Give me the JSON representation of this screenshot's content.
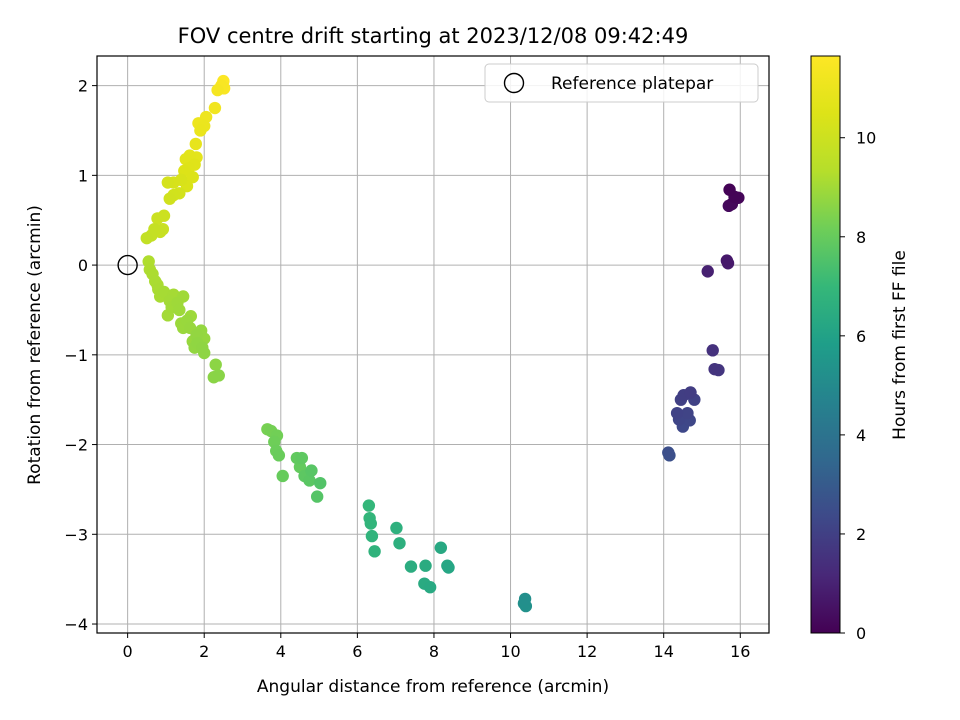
{
  "chart_data": {
    "type": "scatter",
    "title": "FOV centre drift starting at 2023/12/08 09:42:49",
    "xlabel": "Angular distance from reference (arcmin)",
    "ylabel": "Rotation from reference (arcmin)",
    "xlim": [
      -0.8,
      16.75
    ],
    "ylim": [
      -4.1,
      2.33
    ],
    "xticks": [
      0,
      2,
      4,
      6,
      8,
      10,
      12,
      14,
      16
    ],
    "yticks": [
      -4,
      -3,
      -2,
      -1,
      0,
      1,
      2
    ],
    "grid": true,
    "legend": {
      "position": "top-right",
      "entries": [
        "Reference platepar"
      ]
    },
    "reference_point": {
      "x": 0,
      "y": 0
    },
    "colorbar": {
      "label": "Hours from first FF file",
      "range": [
        0,
        11.65
      ],
      "ticks": [
        0,
        2,
        4,
        6,
        8,
        10
      ],
      "colormap": "viridis"
    },
    "points": [
      {
        "x": 15.72,
        "y": 0.84,
        "h": 0.05
      },
      {
        "x": 15.85,
        "y": 0.76,
        "h": 0.1
      },
      {
        "x": 15.95,
        "y": 0.75,
        "h": 0.15
      },
      {
        "x": 15.78,
        "y": 0.68,
        "h": 0.2
      },
      {
        "x": 15.7,
        "y": 0.66,
        "h": 0.25
      },
      {
        "x": 15.65,
        "y": 0.05,
        "h": 0.7
      },
      {
        "x": 15.68,
        "y": 0.02,
        "h": 0.75
      },
      {
        "x": 15.15,
        "y": -0.07,
        "h": 0.95
      },
      {
        "x": 15.28,
        "y": -0.95,
        "h": 1.5
      },
      {
        "x": 15.33,
        "y": -1.16,
        "h": 1.6
      },
      {
        "x": 15.43,
        "y": -1.17,
        "h": 1.65
      },
      {
        "x": 14.7,
        "y": -1.42,
        "h": 1.9
      },
      {
        "x": 14.52,
        "y": -1.45,
        "h": 1.95
      },
      {
        "x": 14.45,
        "y": -1.5,
        "h": 2.0
      },
      {
        "x": 14.8,
        "y": -1.5,
        "h": 2.05
      },
      {
        "x": 14.35,
        "y": -1.65,
        "h": 2.1
      },
      {
        "x": 14.62,
        "y": -1.65,
        "h": 2.15
      },
      {
        "x": 14.4,
        "y": -1.72,
        "h": 2.2
      },
      {
        "x": 14.68,
        "y": -1.73,
        "h": 2.25
      },
      {
        "x": 14.5,
        "y": -1.8,
        "h": 2.3
      },
      {
        "x": 14.12,
        "y": -2.09,
        "h": 2.55
      },
      {
        "x": 14.15,
        "y": -2.12,
        "h": 2.6
      },
      {
        "x": 10.38,
        "y": -3.72,
        "h": 5.2
      },
      {
        "x": 10.35,
        "y": -3.77,
        "h": 5.25
      },
      {
        "x": 10.4,
        "y": -3.8,
        "h": 5.3
      },
      {
        "x": 8.38,
        "y": -3.37,
        "h": 6.2
      },
      {
        "x": 8.35,
        "y": -3.35,
        "h": 6.25
      },
      {
        "x": 8.18,
        "y": -3.15,
        "h": 6.3
      },
      {
        "x": 7.9,
        "y": -3.59,
        "h": 6.35
      },
      {
        "x": 7.75,
        "y": -3.55,
        "h": 6.4
      },
      {
        "x": 7.78,
        "y": -3.35,
        "h": 6.45
      },
      {
        "x": 7.4,
        "y": -3.36,
        "h": 6.5
      },
      {
        "x": 7.1,
        "y": -3.1,
        "h": 6.6
      },
      {
        "x": 7.02,
        "y": -2.93,
        "h": 6.65
      },
      {
        "x": 6.45,
        "y": -3.19,
        "h": 6.75
      },
      {
        "x": 6.38,
        "y": -3.02,
        "h": 6.8
      },
      {
        "x": 6.35,
        "y": -2.88,
        "h": 6.85
      },
      {
        "x": 6.32,
        "y": -2.82,
        "h": 6.9
      },
      {
        "x": 6.3,
        "y": -2.68,
        "h": 6.95
      },
      {
        "x": 5.03,
        "y": -2.43,
        "h": 7.6
      },
      {
        "x": 4.95,
        "y": -2.58,
        "h": 7.65
      },
      {
        "x": 4.8,
        "y": -2.29,
        "h": 7.7
      },
      {
        "x": 4.75,
        "y": -2.4,
        "h": 7.75
      },
      {
        "x": 4.62,
        "y": -2.35,
        "h": 7.8
      },
      {
        "x": 4.55,
        "y": -2.15,
        "h": 7.85
      },
      {
        "x": 4.42,
        "y": -2.15,
        "h": 7.9
      },
      {
        "x": 4.5,
        "y": -2.25,
        "h": 7.95
      },
      {
        "x": 4.05,
        "y": -2.35,
        "h": 8.0
      },
      {
        "x": 3.95,
        "y": -2.12,
        "h": 8.05
      },
      {
        "x": 3.88,
        "y": -2.07,
        "h": 8.1
      },
      {
        "x": 3.83,
        "y": -1.97,
        "h": 8.15
      },
      {
        "x": 3.9,
        "y": -1.9,
        "h": 8.2
      },
      {
        "x": 3.75,
        "y": -1.85,
        "h": 8.25
      },
      {
        "x": 3.65,
        "y": -1.83,
        "h": 8.3
      },
      {
        "x": 2.38,
        "y": -1.23,
        "h": 8.6
      },
      {
        "x": 2.25,
        "y": -1.25,
        "h": 8.62
      },
      {
        "x": 2.3,
        "y": -1.11,
        "h": 8.64
      },
      {
        "x": 2.0,
        "y": -0.98,
        "h": 8.68
      },
      {
        "x": 1.95,
        "y": -0.92,
        "h": 8.7
      },
      {
        "x": 1.82,
        "y": -0.87,
        "h": 8.72
      },
      {
        "x": 1.75,
        "y": -0.92,
        "h": 8.74
      },
      {
        "x": 1.8,
        "y": -0.78,
        "h": 8.76
      },
      {
        "x": 1.92,
        "y": -0.73,
        "h": 8.78
      },
      {
        "x": 2.0,
        "y": -0.82,
        "h": 8.8
      },
      {
        "x": 1.7,
        "y": -0.85,
        "h": 8.82
      },
      {
        "x": 1.63,
        "y": -0.7,
        "h": 8.84
      },
      {
        "x": 1.55,
        "y": -0.62,
        "h": 8.86
      },
      {
        "x": 1.45,
        "y": -0.7,
        "h": 8.88
      },
      {
        "x": 1.4,
        "y": -0.65,
        "h": 8.9
      },
      {
        "x": 1.65,
        "y": -0.57,
        "h": 8.92
      },
      {
        "x": 1.35,
        "y": -0.5,
        "h": 8.94
      },
      {
        "x": 1.3,
        "y": -0.42,
        "h": 8.96
      },
      {
        "x": 1.45,
        "y": -0.35,
        "h": 8.98
      },
      {
        "x": 1.15,
        "y": -0.47,
        "h": 9.0
      },
      {
        "x": 1.05,
        "y": -0.56,
        "h": 9.02
      },
      {
        "x": 1.1,
        "y": -0.4,
        "h": 9.04
      },
      {
        "x": 1.2,
        "y": -0.33,
        "h": 9.06
      },
      {
        "x": 0.95,
        "y": -0.3,
        "h": 9.08
      },
      {
        "x": 0.85,
        "y": -0.35,
        "h": 9.1
      },
      {
        "x": 0.8,
        "y": -0.27,
        "h": 9.12
      },
      {
        "x": 0.78,
        "y": -0.22,
        "h": 9.14
      },
      {
        "x": 0.72,
        "y": -0.18,
        "h": 9.16
      },
      {
        "x": 0.65,
        "y": -0.1,
        "h": 9.18
      },
      {
        "x": 0.58,
        "y": -0.05,
        "h": 9.2
      },
      {
        "x": 0.55,
        "y": 0.04,
        "h": 9.22
      },
      {
        "x": 0.5,
        "y": 0.3,
        "h": 9.7
      },
      {
        "x": 0.62,
        "y": 0.33,
        "h": 9.75
      },
      {
        "x": 0.7,
        "y": 0.4,
        "h": 9.8
      },
      {
        "x": 0.85,
        "y": 0.37,
        "h": 9.85
      },
      {
        "x": 0.92,
        "y": 0.4,
        "h": 9.9
      },
      {
        "x": 0.78,
        "y": 0.52,
        "h": 9.95
      },
      {
        "x": 0.95,
        "y": 0.55,
        "h": 10.0
      },
      {
        "x": 1.1,
        "y": 0.74,
        "h": 10.1
      },
      {
        "x": 1.2,
        "y": 0.78,
        "h": 10.15
      },
      {
        "x": 1.35,
        "y": 0.8,
        "h": 10.2
      },
      {
        "x": 1.05,
        "y": 0.92,
        "h": 10.25
      },
      {
        "x": 1.2,
        "y": 0.92,
        "h": 10.3
      },
      {
        "x": 1.4,
        "y": 0.95,
        "h": 10.35
      },
      {
        "x": 1.55,
        "y": 0.88,
        "h": 10.4
      },
      {
        "x": 1.7,
        "y": 0.98,
        "h": 10.45
      },
      {
        "x": 1.48,
        "y": 1.05,
        "h": 10.5
      },
      {
        "x": 1.6,
        "y": 1.08,
        "h": 10.55
      },
      {
        "x": 1.75,
        "y": 1.12,
        "h": 10.6
      },
      {
        "x": 1.52,
        "y": 1.18,
        "h": 10.65
      },
      {
        "x": 1.62,
        "y": 1.22,
        "h": 10.7
      },
      {
        "x": 1.8,
        "y": 1.2,
        "h": 10.75
      },
      {
        "x": 1.78,
        "y": 1.35,
        "h": 10.85
      },
      {
        "x": 1.9,
        "y": 1.5,
        "h": 10.95
      },
      {
        "x": 2.0,
        "y": 1.55,
        "h": 11.0
      },
      {
        "x": 1.85,
        "y": 1.58,
        "h": 11.05
      },
      {
        "x": 2.05,
        "y": 1.65,
        "h": 11.1
      },
      {
        "x": 2.28,
        "y": 1.75,
        "h": 11.2
      },
      {
        "x": 2.35,
        "y": 1.95,
        "h": 11.35
      },
      {
        "x": 2.45,
        "y": 2.0,
        "h": 11.45
      },
      {
        "x": 2.52,
        "y": 1.97,
        "h": 11.5
      },
      {
        "x": 2.5,
        "y": 2.05,
        "h": 11.6
      }
    ]
  }
}
